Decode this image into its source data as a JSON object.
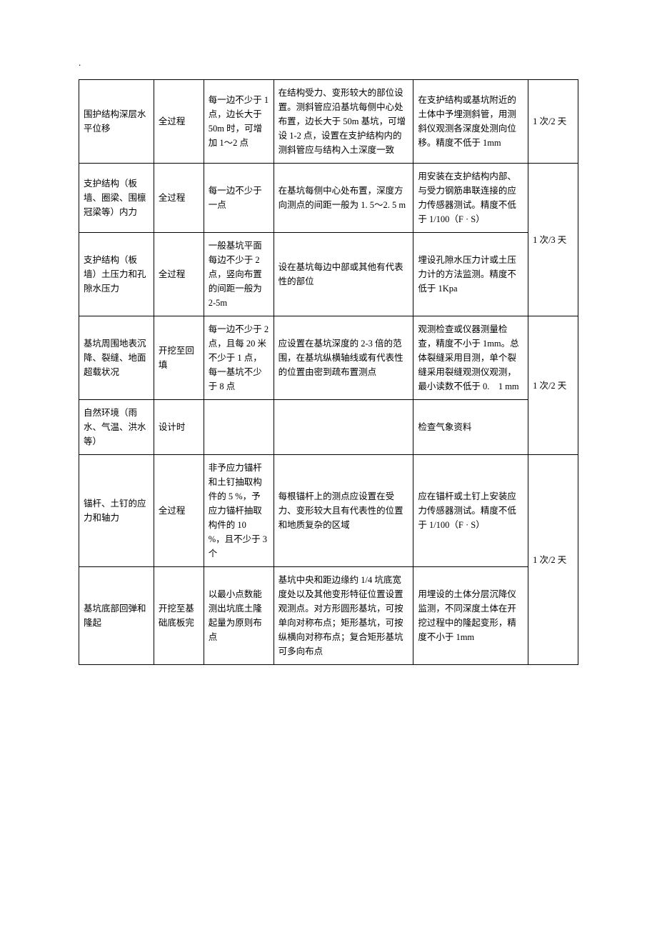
{
  "dot": ".",
  "rows": [
    {
      "c1": "围护结构深层水平位移",
      "c2": "全过程",
      "c3": "每一边不少于 1 点，边长大于 50m 时，可增加 1～2 点",
      "c4": "在结构受力、变形较大的部位设置。测斜管应沿基坑每侧中心处布置，边长大于 50m 基坑，可增设 1-2 点，设置在支护结构内的测斜管应与结构入土深度一致",
      "c5": "在支护结构或基坑附近的土体中予埋测斜管，用测斜仪观测各深度处测向位移。精度不低于 1mm",
      "c6": "1 次/2 天"
    },
    {
      "c1": "支护结构（板墙、圈梁、围檩冠梁等）内力",
      "c2": "全过程",
      "c3": "每一边不少于一点",
      "c4": "在基坑每侧中心处布置，深度方向测点的间距一般为 1. 5～2. 5 m",
      "c5": "用安装在支护结构内部、与受力钢筋串联连接的应力传感器测试。精度不低于 1/100（F · S）",
      "c6": "1 次/3 天"
    },
    {
      "c1": "支护结构（板墙）土压力和孔隙水压力",
      "c2": "全过程",
      "c3": "一般基坑平面每边不少于 2 点，竖向布置的间距一般为 2-5m",
      "c4": "设在基坑每边中部或其他有代表性的部位",
      "c5": "埋设孔隙水压力计或土压力计的方法监测。精度不低于 1Kpa",
      "c6": ""
    },
    {
      "c1": "基坑周围地表沉降、裂缝、地面超载状况",
      "c2": "开挖至回填",
      "c3": "每一边不少于 2 点，且每 20 米不少于 1 点，每一基坑不少于 8 点",
      "c4": "应设置在基坑深度的 2-3 倍的范围，在基坑纵横轴线或有代表性的位置由密到疏布置测点",
      "c5": "观测检查或仪器测量检查，精度不小于 1mm。总体裂缝采用目测，单个裂缝采用裂缝观测仪观测，最小读数不低于 0.　1 mm",
      "c6": "1 次/2 天"
    },
    {
      "c1": "自然环境（雨水、气温、洪水等）",
      "c2": "设计时",
      "c3": "",
      "c4": "",
      "c5": "检查气象资料",
      "c6": ""
    },
    {
      "c1": "锚杆、土钉的应力和轴力",
      "c2": "全过程",
      "c3": "非予应力锚杆和土钉抽取构件的 5 %，予应力锚杆抽取构件的 10　%，且不少于 3 个",
      "c4": "每根锚杆上的测点应设置在受力、变形较大且有代表性的位置和地质复杂的区域",
      "c5": "应在锚杆或土钉上安装应力传感器测试。精度不低于 1/100（F · S）",
      "c6": "1 次/2 天"
    },
    {
      "c1": "基坑底部回弹和隆起",
      "c2": "开挖至基础底板完",
      "c3": "以最小点数能测出坑底土隆起量为原则布点",
      "c4": "基坑中央和距边缘约 1/4 坑底宽度处以及其他变形特征位置设置观测点。对方形圆形基坑，可按单向对称布点；矩形基坑，可按纵横向对称布点；复合矩形基坑可多向布点",
      "c5": "用埋设的土体分层沉降仪监测，不同深度土体在开挖过程中的隆起变形，精度不小于 1mm",
      "c6": ""
    }
  ]
}
